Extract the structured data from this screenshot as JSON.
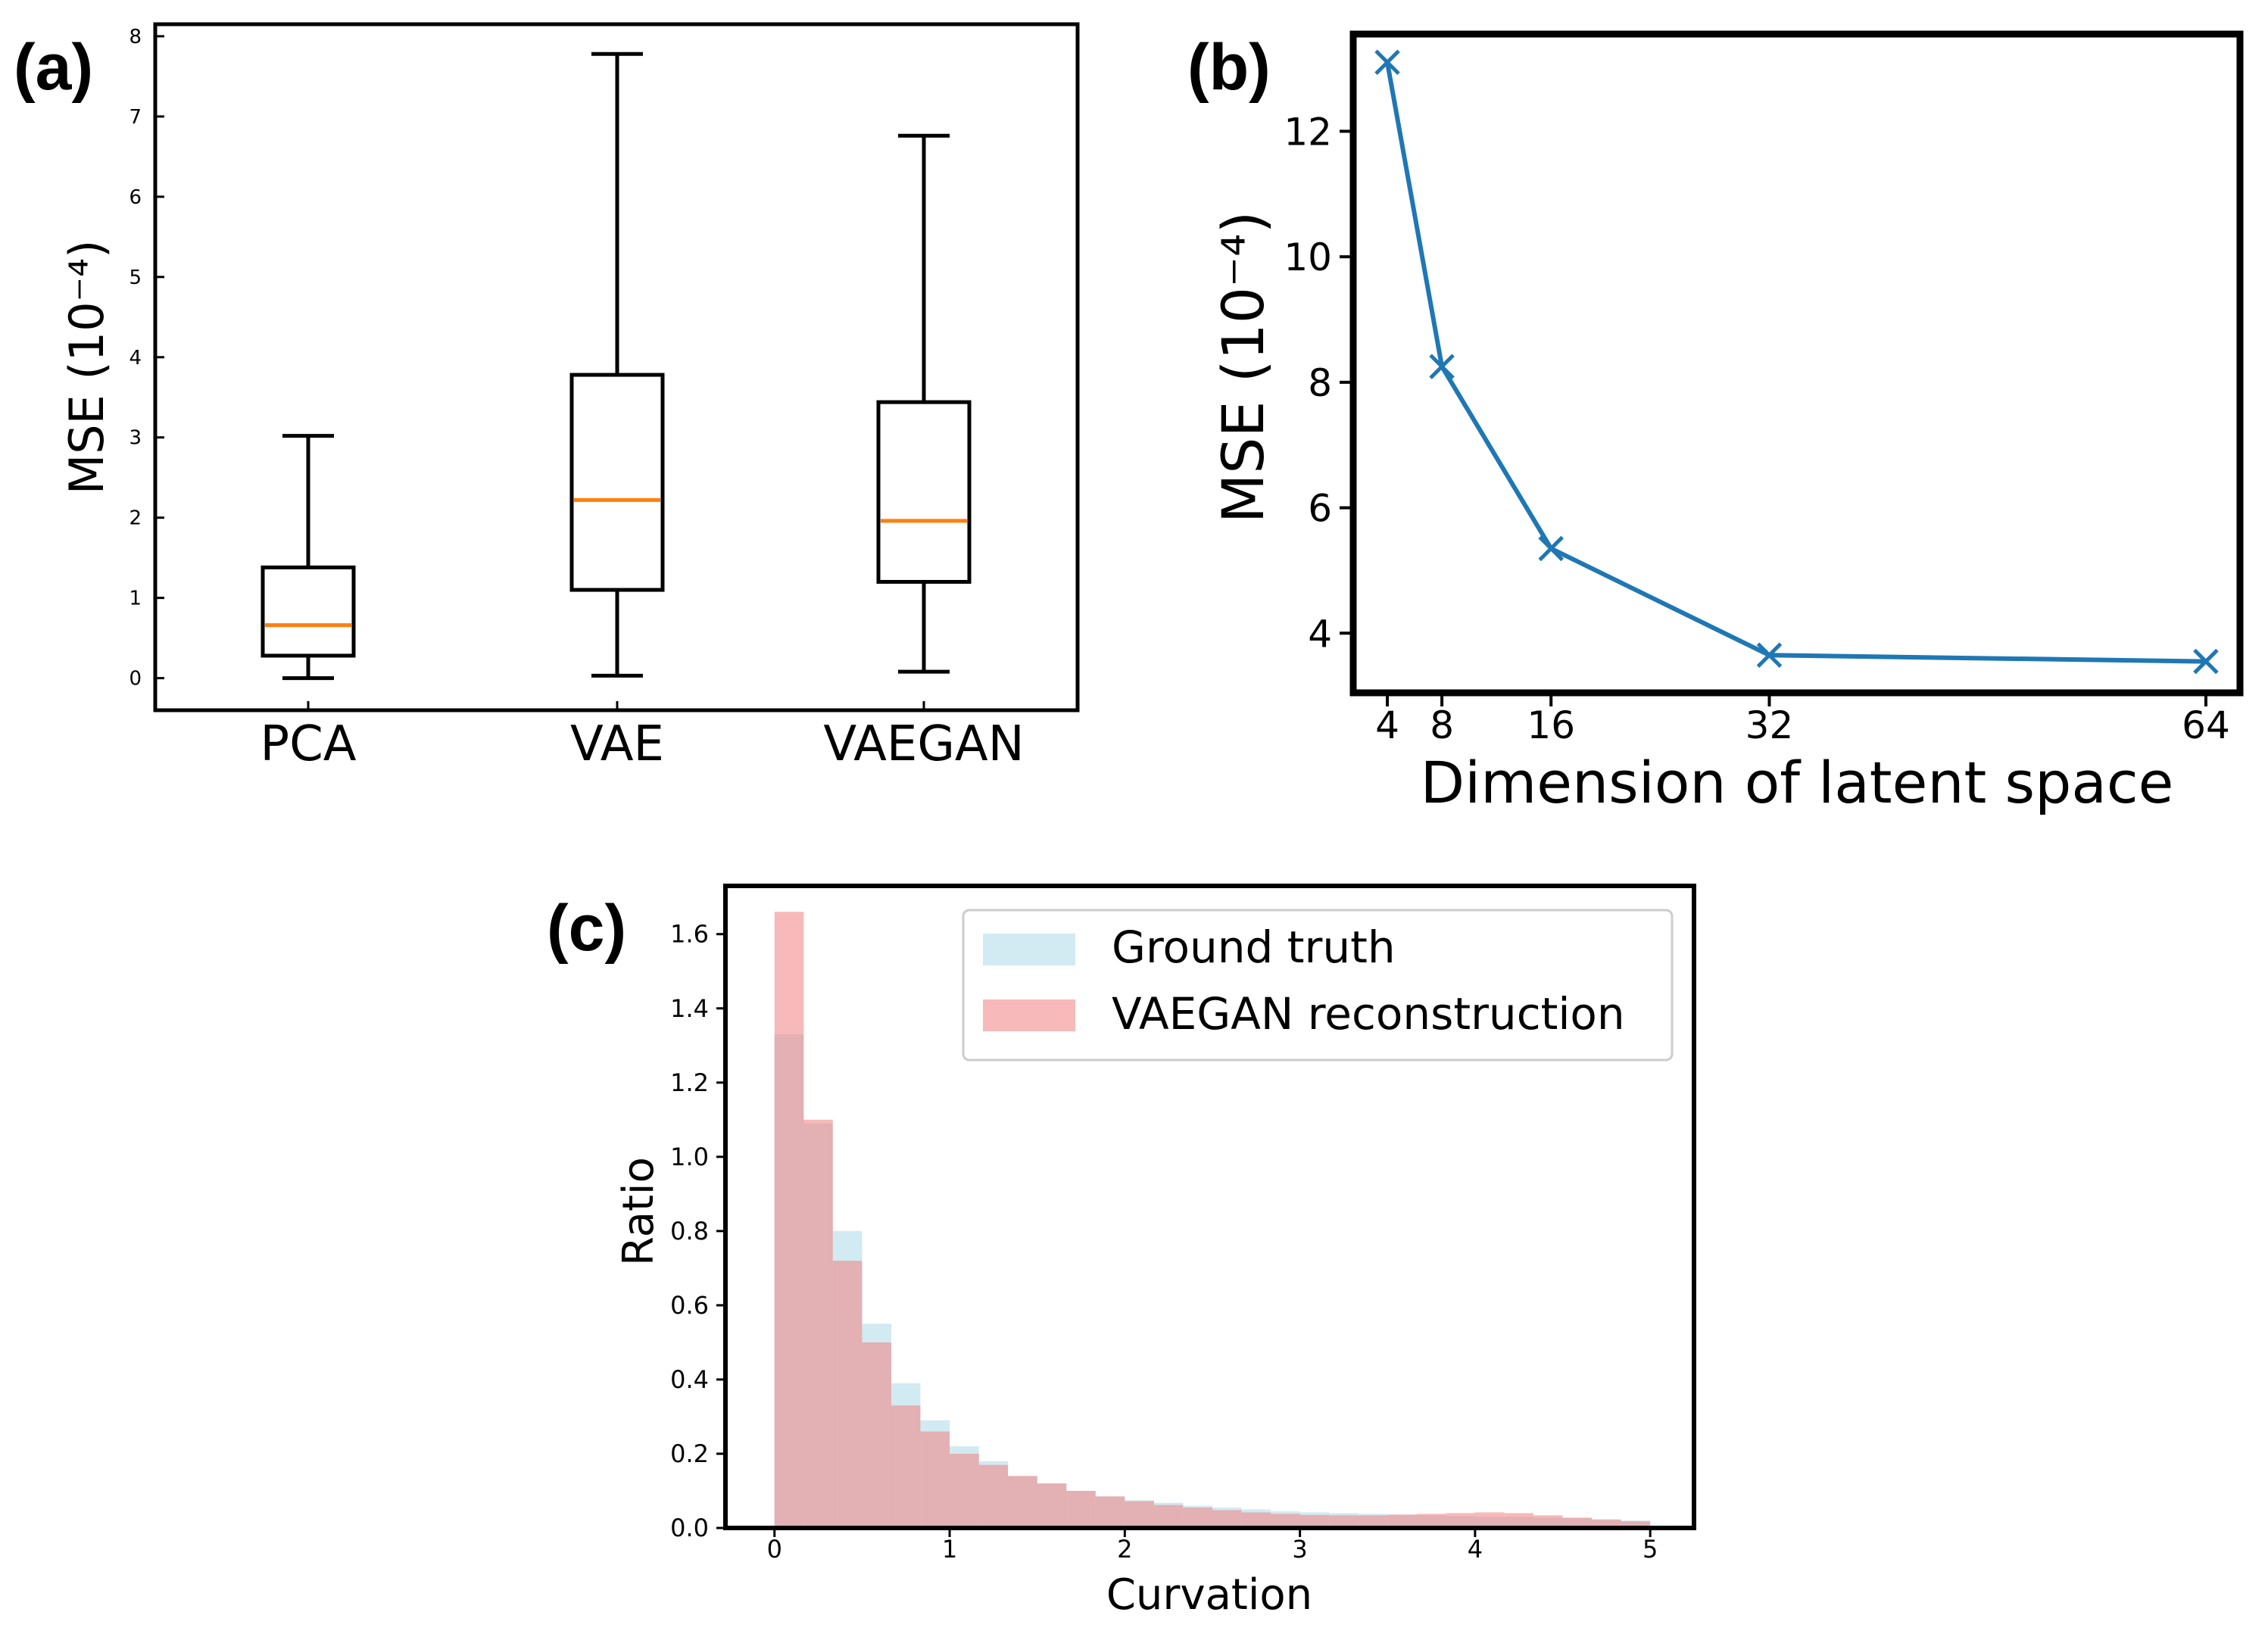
{
  "panels": [
    {
      "label": "(a)"
    },
    {
      "label": "(b)"
    },
    {
      "label": "(c)"
    }
  ],
  "colors": {
    "box": "#000000",
    "median": "#ff7f0e",
    "line": "#1f77b4",
    "ground_truth": "#add8e6",
    "vaegan": "#f08080"
  },
  "chart_data": [
    {
      "id": "a",
      "type": "box",
      "title": "",
      "xlabel": "",
      "ylabel": "MSE (10⁻⁴)",
      "ylim": [
        -0.4,
        8.15
      ],
      "yticks": [
        "0",
        "1",
        "2",
        "3",
        "4",
        "5",
        "6",
        "7",
        "8"
      ],
      "categories": [
        "PCA",
        "VAE",
        "VAEGAN"
      ],
      "boxes": [
        {
          "whislo": 0.0,
          "q1": 0.28,
          "median": 0.66,
          "q3": 1.38,
          "whishi": 3.02
        },
        {
          "whislo": 0.03,
          "q1": 1.1,
          "median": 2.22,
          "q3": 3.78,
          "whishi": 7.78
        },
        {
          "whislo": 0.08,
          "q1": 1.2,
          "median": 1.96,
          "q3": 3.44,
          "whishi": 6.76
        }
      ]
    },
    {
      "id": "b",
      "type": "line",
      "title": "",
      "xlabel": "Dimension of latent space",
      "ylabel": "MSE (10⁻⁴)",
      "xlim": [
        1.5,
        66.5
      ],
      "ylim": [
        3.05,
        13.55
      ],
      "x": [
        4,
        8,
        16,
        32,
        64
      ],
      "xticks": [
        "4",
        "8",
        "16",
        "32",
        "64"
      ],
      "yticks": [
        "4",
        "6",
        "8",
        "10",
        "12"
      ],
      "series": [
        {
          "name": "MSE",
          "values": [
            13.1,
            8.25,
            5.35,
            3.65,
            3.55
          ]
        }
      ]
    },
    {
      "id": "c",
      "type": "histogram",
      "title": "",
      "xlabel": "Curvation",
      "ylabel": "Ratio",
      "xlim": [
        -0.28,
        5.25
      ],
      "ylim": [
        0.0,
        1.73
      ],
      "xticks": [
        "0",
        "1",
        "2",
        "3",
        "4",
        "5"
      ],
      "yticks": [
        "0.0",
        "0.2",
        "0.4",
        "0.6",
        "0.8",
        "1.0",
        "1.2",
        "1.4",
        "1.6"
      ],
      "legend_position": "top-right",
      "series": [
        {
          "name": "Ground truth",
          "edges": [
            0,
            0.167,
            0.333,
            0.5,
            0.667,
            0.833,
            1.0,
            1.167,
            1.333,
            1.5,
            1.667,
            1.833,
            2.0,
            2.167,
            2.333,
            2.5,
            2.667,
            2.833,
            3.0,
            3.167,
            3.333,
            3.5,
            3.667,
            3.833,
            4.0,
            4.167,
            4.333,
            4.5,
            4.667,
            4.833,
            5.0
          ],
          "values": [
            1.33,
            1.09,
            0.8,
            0.55,
            0.39,
            0.29,
            0.22,
            0.18,
            0.14,
            0.12,
            0.1,
            0.085,
            0.075,
            0.068,
            0.06,
            0.055,
            0.05,
            0.045,
            0.042,
            0.04,
            0.038,
            0.036,
            0.034,
            0.032,
            0.03,
            0.03,
            0.028,
            0.026,
            0.024,
            0.02
          ]
        },
        {
          "name": "VAEGAN reconstruction",
          "edges": [
            0,
            0.167,
            0.333,
            0.5,
            0.667,
            0.833,
            1.0,
            1.167,
            1.333,
            1.5,
            1.667,
            1.833,
            2.0,
            2.167,
            2.333,
            2.5,
            2.667,
            2.833,
            3.0,
            3.167,
            3.333,
            3.5,
            3.667,
            3.833,
            4.0,
            4.167,
            4.333,
            4.5,
            4.667,
            4.833,
            5.0
          ],
          "values": [
            1.66,
            1.1,
            0.72,
            0.5,
            0.33,
            0.26,
            0.2,
            0.17,
            0.14,
            0.12,
            0.1,
            0.085,
            0.072,
            0.062,
            0.055,
            0.048,
            0.042,
            0.038,
            0.035,
            0.034,
            0.034,
            0.036,
            0.038,
            0.04,
            0.042,
            0.04,
            0.034,
            0.028,
            0.022,
            0.018
          ]
        }
      ]
    }
  ]
}
